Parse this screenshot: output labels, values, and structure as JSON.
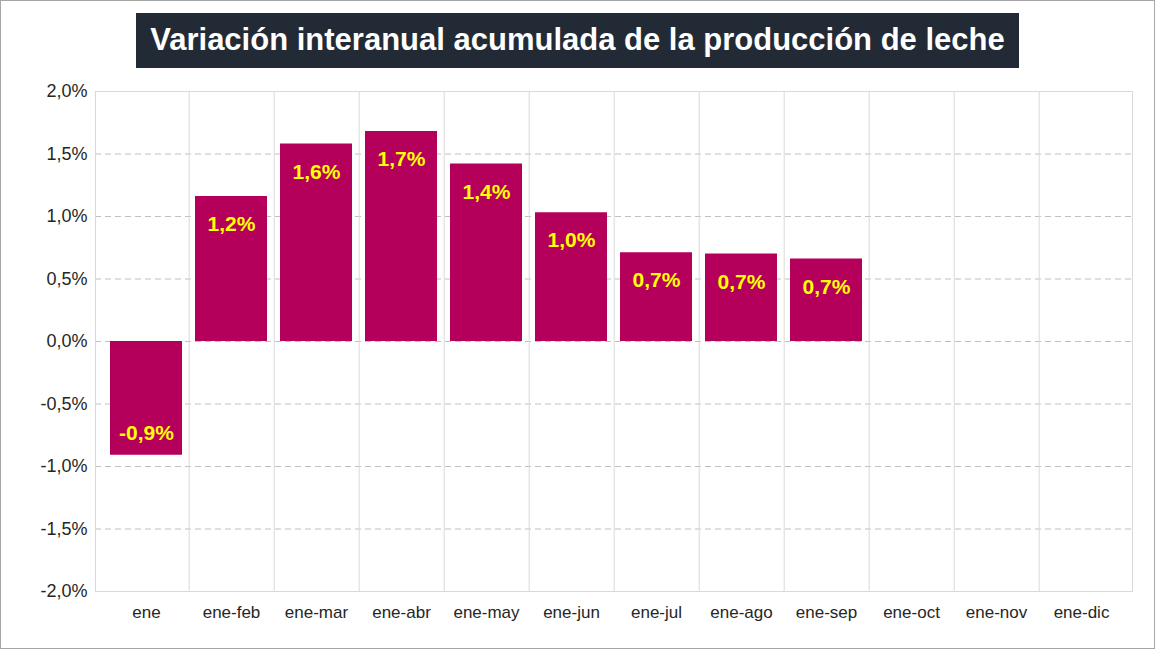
{
  "chart_data": {
    "type": "bar",
    "title": "Variación interanual acumulada de la producción de leche",
    "categories": [
      "ene",
      "ene-feb",
      "ene-mar",
      "ene-abr",
      "ene-may",
      "ene-jun",
      "ene-jul",
      "ene-ago",
      "ene-sep",
      "ene-oct",
      "ene-nov",
      "ene-dic"
    ],
    "values": [
      -0.91,
      1.16,
      1.58,
      1.68,
      1.42,
      1.03,
      0.71,
      0.7,
      0.66,
      null,
      null,
      null
    ],
    "value_labels": [
      "-0,9%",
      "1,2%",
      "1,6%",
      "1,7%",
      "1,4%",
      "1,0%",
      "0,7%",
      "0,7%",
      "0,7%",
      null,
      null,
      null
    ],
    "color": "#b5005b",
    "ylim": [
      -2,
      2
    ],
    "yticks": [
      {
        "value": -2,
        "label": "-2,0%"
      },
      {
        "value": -1.5,
        "label": "-1,5%"
      },
      {
        "value": -1,
        "label": "-1,0%"
      },
      {
        "value": -0.5,
        "label": "-0,5%"
      },
      {
        "value": 0,
        "label": "0,0%"
      },
      {
        "value": 0.5,
        "label": "0,5%"
      },
      {
        "value": 1,
        "label": "1,0%"
      },
      {
        "value": 1.5,
        "label": "1,5%"
      },
      {
        "value": 2,
        "label": "2,0%"
      }
    ],
    "grid": true,
    "data_labels": true
  }
}
